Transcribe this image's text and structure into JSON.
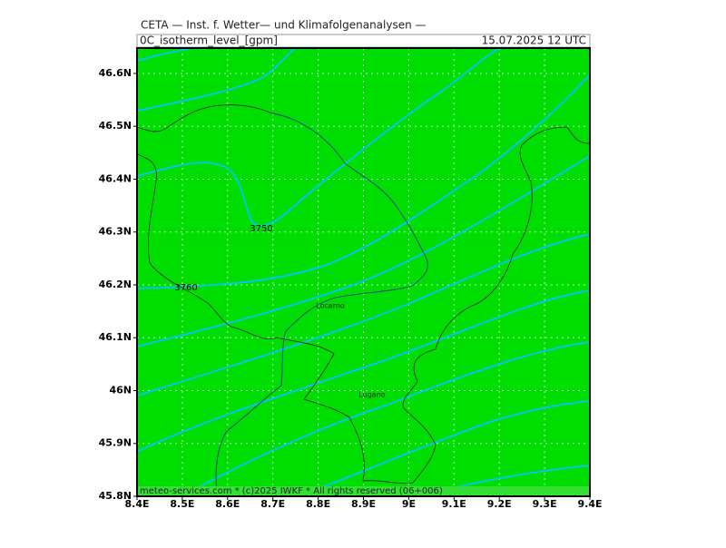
{
  "header": {
    "title": "CETA — Inst. f. Wetter— und Klimafolgenanalysen —",
    "parameter": "0C_isotherm_level_[gpm]",
    "datetime": "15.07.2025  12 UTC"
  },
  "map": {
    "xlim": [
      8.4,
      9.4
    ],
    "ylim": [
      45.8,
      46.648
    ],
    "xticks": [
      {
        "value": 8.4,
        "label": "8.4E"
      },
      {
        "value": 8.5,
        "label": "8.5E"
      },
      {
        "value": 8.6,
        "label": "8.6E"
      },
      {
        "value": 8.7,
        "label": "8.7E"
      },
      {
        "value": 8.8,
        "label": "8.8E"
      },
      {
        "value": 8.9,
        "label": "8.9E"
      },
      {
        "value": 9,
        "label": "9E"
      },
      {
        "value": 9.1,
        "label": "9.1E"
      },
      {
        "value": 9.2,
        "label": "9.2E"
      },
      {
        "value": 9.3,
        "label": "9.3E"
      },
      {
        "value": 9.4,
        "label": "9.4E"
      }
    ],
    "yticks": [
      {
        "value": 45.8,
        "label": "45.8N"
      },
      {
        "value": 45.9,
        "label": "45.9N"
      },
      {
        "value": 46,
        "label": "46N"
      },
      {
        "value": 46.1,
        "label": "46.1N"
      },
      {
        "value": 46.2,
        "label": "46.2N"
      },
      {
        "value": 46.3,
        "label": "46.3N"
      },
      {
        "value": 46.4,
        "label": "46.4N"
      },
      {
        "value": 46.5,
        "label": "46.5N"
      },
      {
        "value": 46.6,
        "label": "46.6N"
      }
    ],
    "contour_labels": [
      "3750",
      "3760"
    ],
    "places": [
      "Locarno",
      "Lugano"
    ],
    "footer": "meteo-services.com * (c)2025 IWKF * All rights reserved (06+006)"
  }
}
